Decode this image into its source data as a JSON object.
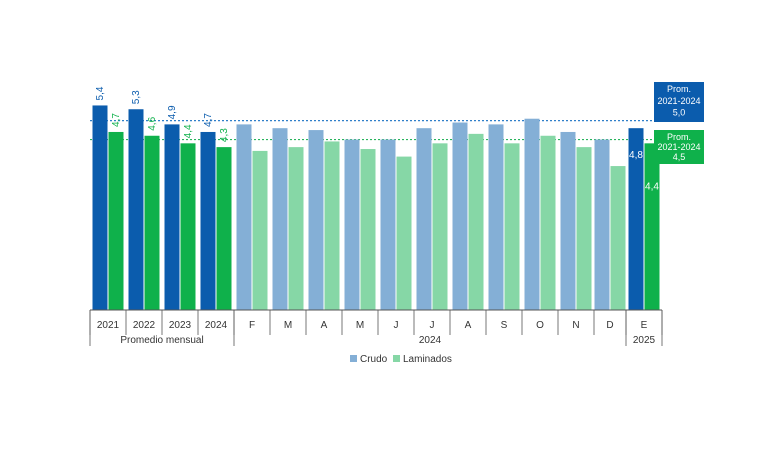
{
  "chart_data": {
    "type": "bar",
    "ylim": [
      0,
      6.6
    ],
    "categories": [
      "2021",
      "2022",
      "2023",
      "2024",
      "F",
      "M",
      "A",
      "M",
      "J",
      "J",
      "A",
      "S",
      "O",
      "N",
      "D",
      "E"
    ],
    "groups": [
      {
        "label": "Promedio mensual",
        "span": 4
      },
      {
        "label": "2024",
        "span": 11
      },
      {
        "label": "2025",
        "span": 1
      }
    ],
    "series": [
      {
        "name": "Crudo",
        "values": [
          5.4,
          5.3,
          4.9,
          4.7,
          4.9,
          4.8,
          4.75,
          4.5,
          4.5,
          4.8,
          4.95,
          4.9,
          5.05,
          4.7,
          4.5,
          4.8
        ]
      },
      {
        "name": "Laminados",
        "values": [
          4.7,
          4.6,
          4.4,
          4.3,
          4.2,
          4.3,
          4.45,
          4.25,
          4.05,
          4.4,
          4.65,
          4.4,
          4.6,
          4.3,
          3.8,
          4.4
        ]
      }
    ],
    "data_labels": {
      "Crudo": [
        "5,4",
        "5,3",
        "4,9",
        "4,7",
        null,
        null,
        null,
        null,
        null,
        null,
        null,
        null,
        null,
        null,
        null,
        "4,8"
      ],
      "Laminados": [
        "4,7",
        "4,6",
        "4,4",
        "4,3",
        null,
        null,
        null,
        null,
        null,
        null,
        null,
        null,
        null,
        null,
        null,
        "4,4"
      ]
    },
    "reference_lines": [
      {
        "series": "Crudo",
        "value": 5.0,
        "label_line1": "Prom.",
        "label_line2": "2021-2024",
        "label_value": "5,0"
      },
      {
        "series": "Laminados",
        "value": 4.5,
        "label_line1": "Prom.",
        "label_line2": "2021-2024",
        "label_value": "4,5"
      }
    ],
    "legend": {
      "position": "bottom-center",
      "items": [
        "Crudo",
        "Laminados"
      ]
    }
  },
  "colors": {
    "crudo_dark": "#0b5cad",
    "crudo_light": "#84afd6",
    "laminados_dark": "#0fb14b",
    "laminados_light": "#86d7a6",
    "crudo_line": "#2f7fc9",
    "laminados_line": "#29b45d",
    "axis": "#555555",
    "text": "#333333"
  }
}
